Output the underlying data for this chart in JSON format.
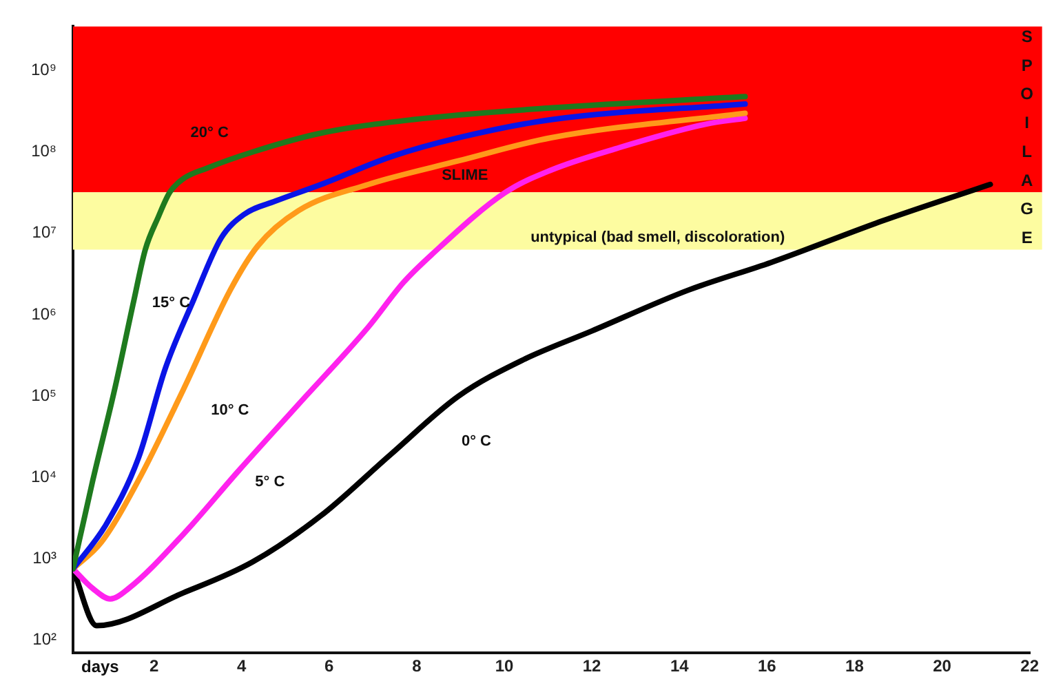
{
  "chart_data": {
    "type": "line",
    "xlabel": "days",
    "log": "y",
    "grid": false,
    "legend": false,
    "marker": "none",
    "line_style": "solid",
    "xlim": [
      0.15,
      22
    ],
    "xticks": [
      2,
      4,
      6,
      8,
      10,
      12,
      14,
      16,
      18,
      20,
      22
    ],
    "ylim": [
      70,
      3500000000
    ],
    "yticks": [
      {
        "value": 100,
        "label": "10²"
      },
      {
        "value": 1000,
        "label": "10³"
      },
      {
        "value": 10000,
        "label": "10⁴"
      },
      {
        "value": 100000,
        "label": "10⁵"
      },
      {
        "value": 1000000,
        "label": "10⁶"
      },
      {
        "value": 10000000,
        "label": "10⁷"
      },
      {
        "value": 100000000,
        "label": "10⁸"
      },
      {
        "value": 1000000000,
        "label": "10⁹"
      }
    ],
    "bands": [
      {
        "axis": "y",
        "from": 32000000,
        "to": 3500000000,
        "label": "SLIME",
        "color": "#ff0000"
      },
      {
        "axis": "y",
        "from": 6300000,
        "to": 32000000,
        "label": "untypical (bad smell, discoloration)",
        "color": "#fdfca0"
      }
    ],
    "annotations": [
      "SPOILAGE"
    ],
    "series": [
      {
        "name": "20° C",
        "color": "#1e7a1e",
        "x": [
          0.15,
          0.6,
          1.1,
          1.54,
          1.8,
          2.1,
          2.36,
          2.67,
          3.2,
          4.25,
          5.8,
          7.9,
          11.1,
          15.5
        ],
        "values": [
          750,
          9100,
          120000,
          1500000,
          6300000,
          16000000,
          32000000,
          47000000,
          63000000,
          100000000,
          170000000,
          250000000,
          350000000,
          480000000
        ]
      },
      {
        "name": "15° C",
        "color": "#0a14e6",
        "x": [
          0.15,
          0.9,
          1.64,
          2.26,
          2.9,
          3.53,
          4.05,
          4.78,
          5.82,
          7.4,
          8.96,
          11.07,
          15.5
        ],
        "values": [
          750,
          2600,
          17000,
          220000,
          1500000,
          8700000,
          17000000,
          25000000,
          40000000,
          87000000,
          150000000,
          250000000,
          390000000
        ]
      },
      {
        "name": "10° C",
        "color": "#ff9a1a",
        "x": [
          0.15,
          0.8,
          1.64,
          2.67,
          3.74,
          4.37,
          5.3,
          6.9,
          8.96,
          11.07,
          15.5
        ],
        "values": [
          750,
          1600,
          9100,
          120000,
          2000000,
          7000000,
          19000000,
          40000000,
          78000000,
          150000000,
          300000000
        ]
      },
      {
        "name": "5° C",
        "color": "#ff22ee",
        "x": [
          0.15,
          0.6,
          1.0,
          1.42,
          2.67,
          3.93,
          5.3,
          6.9,
          7.7,
          8.33,
          10.03,
          11.07,
          12.55,
          14.6,
          15.5
        ],
        "values": [
          750,
          430,
          320,
          430,
          2000,
          12000,
          79000,
          710000,
          2500000,
          5400000,
          32000000,
          60000000,
          110000000,
          220000000,
          260000000
        ]
      },
      {
        "name": "0° C",
        "color": "#000000",
        "x": [
          0.15,
          0.69,
          2.67,
          4.25,
          5.82,
          7.4,
          8.96,
          10.44,
          12,
          14.2,
          16.1,
          18.6,
          21.1
        ],
        "values": [
          750,
          150,
          380,
          910,
          3400,
          19000,
          100000,
          280000,
          630000,
          2000000,
          4400000,
          14000000,
          40000000
        ]
      }
    ]
  }
}
